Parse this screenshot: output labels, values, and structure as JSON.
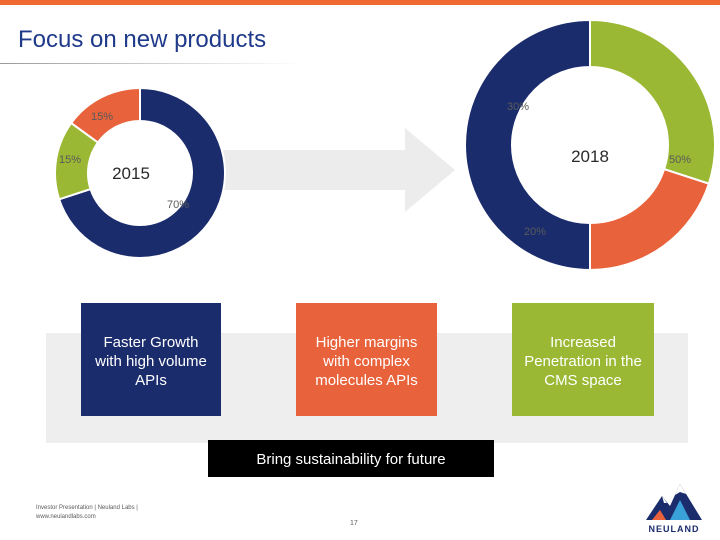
{
  "title": "Focus on new products",
  "colors": {
    "accent_bar": "#ef6a32",
    "navy": "#1b2c6d",
    "orange": "#e8623b",
    "green": "#9ab833",
    "arrow": "#ececec"
  },
  "chart_data": [
    {
      "type": "pie",
      "donut": true,
      "center_label": "2015",
      "slices": [
        {
          "label": "70%",
          "value": 70,
          "color": "#1b2c6d"
        },
        {
          "label": "15%",
          "value": 15,
          "color": "#9ab833"
        },
        {
          "label": "15%",
          "value": 15,
          "color": "#e8623b"
        }
      ]
    },
    {
      "type": "pie",
      "donut": true,
      "center_label": "2018",
      "slices": [
        {
          "label": "50%",
          "value": 50,
          "color": "#1b2c6d"
        },
        {
          "label": "20%",
          "value": 20,
          "color": "#e8623b"
        },
        {
          "label": "30%",
          "value": 30,
          "color": "#9ab833"
        }
      ]
    }
  ],
  "boxes": [
    {
      "text": "Faster Growth\nwith high volume\nAPIs"
    },
    {
      "text": "Higher margins\nwith complex\nmolecules APIs"
    },
    {
      "text": "Increased\nPenetration in the\nCMS space"
    }
  ],
  "banner": "Bring sustainability for future",
  "footer": {
    "line1": "Investor Presentation | Neuland Labs |",
    "line2": "www.neulandlabs.com",
    "page_number": "17"
  },
  "logo": {
    "text": "NEULAND"
  }
}
